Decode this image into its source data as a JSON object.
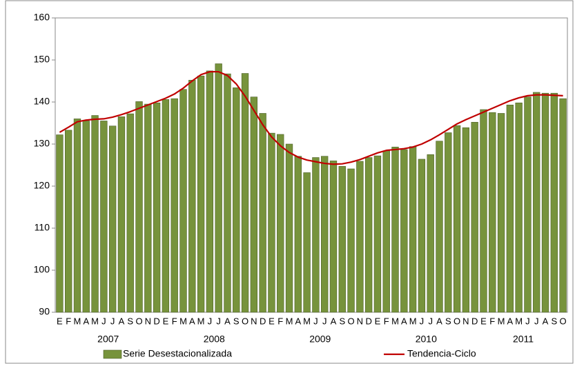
{
  "chart_data": {
    "type": "bar",
    "categories": [
      "E",
      "F",
      "M",
      "A",
      "M",
      "J",
      "J",
      "A",
      "S",
      "O",
      "N",
      "D",
      "E",
      "F",
      "M",
      "A",
      "M",
      "J",
      "J",
      "A",
      "S",
      "O",
      "N",
      "D",
      "E",
      "F",
      "M",
      "A",
      "M",
      "J",
      "J",
      "A",
      "S",
      "O",
      "N",
      "D",
      "E",
      "F",
      "M",
      "A",
      "M",
      "J",
      "J",
      "A",
      "S",
      "O",
      "N",
      "D",
      "E",
      "F",
      "M",
      "A",
      "M",
      "J",
      "J",
      "A",
      "S",
      "O"
    ],
    "groups": [
      {
        "label": "2007",
        "size": 12
      },
      {
        "label": "2008",
        "size": 12
      },
      {
        "label": "2009",
        "size": 12
      },
      {
        "label": "2010",
        "size": 12
      },
      {
        "label": "2011",
        "size": 10
      }
    ],
    "series": [
      {
        "name": "Serie Desestacionalizada",
        "type": "bar",
        "color": "#77933c",
        "values": [
          132.2,
          133.3,
          136,
          135.5,
          136.8,
          135.5,
          134.3,
          136.5,
          137.2,
          140.1,
          139.5,
          139.8,
          140.6,
          140.8,
          143,
          145.2,
          146.2,
          147.4,
          149.1,
          146.7,
          143.4,
          146.8,
          141.2,
          137.3,
          132.6,
          132.3,
          130,
          127.1,
          123.2,
          126.8,
          127.1,
          126,
          124.7,
          124.1,
          125.9,
          126.8,
          127.2,
          128.4,
          129.3,
          128.7,
          129.4,
          126.4,
          127.5,
          130.7,
          132.7,
          134.4,
          133.9,
          135.2,
          138.2,
          137.5,
          137.3,
          139.3,
          139.8,
          141.2,
          142.3,
          142.1,
          142.1,
          140.8
        ]
      },
      {
        "name": "Tendencia-Ciclo",
        "type": "line",
        "color": "#c00000",
        "values": [
          132.8,
          134,
          135.3,
          135.7,
          135.9,
          136,
          136.4,
          137,
          137.7,
          138.5,
          139.3,
          140.1,
          140.9,
          141.9,
          143.3,
          145,
          146.5,
          147.2,
          147.2,
          146.3,
          144.3,
          141.4,
          138,
          134.6,
          131.7,
          129.6,
          128,
          126.9,
          126.2,
          125.8,
          125.4,
          125.2,
          125.3,
          125.7,
          126.3,
          127.1,
          127.9,
          128.5,
          128.7,
          128.9,
          129.3,
          130,
          131,
          132.2,
          133.5,
          134.8,
          135.8,
          136.7,
          137.6,
          138.5,
          139.4,
          140.3,
          141,
          141.5,
          141.7,
          141.7,
          141.6,
          141.5
        ]
      }
    ],
    "ylim": [
      90,
      160
    ],
    "yticks": [
      90,
      100,
      110,
      120,
      130,
      140,
      150,
      160
    ],
    "grid": false,
    "legend": "bottom"
  }
}
